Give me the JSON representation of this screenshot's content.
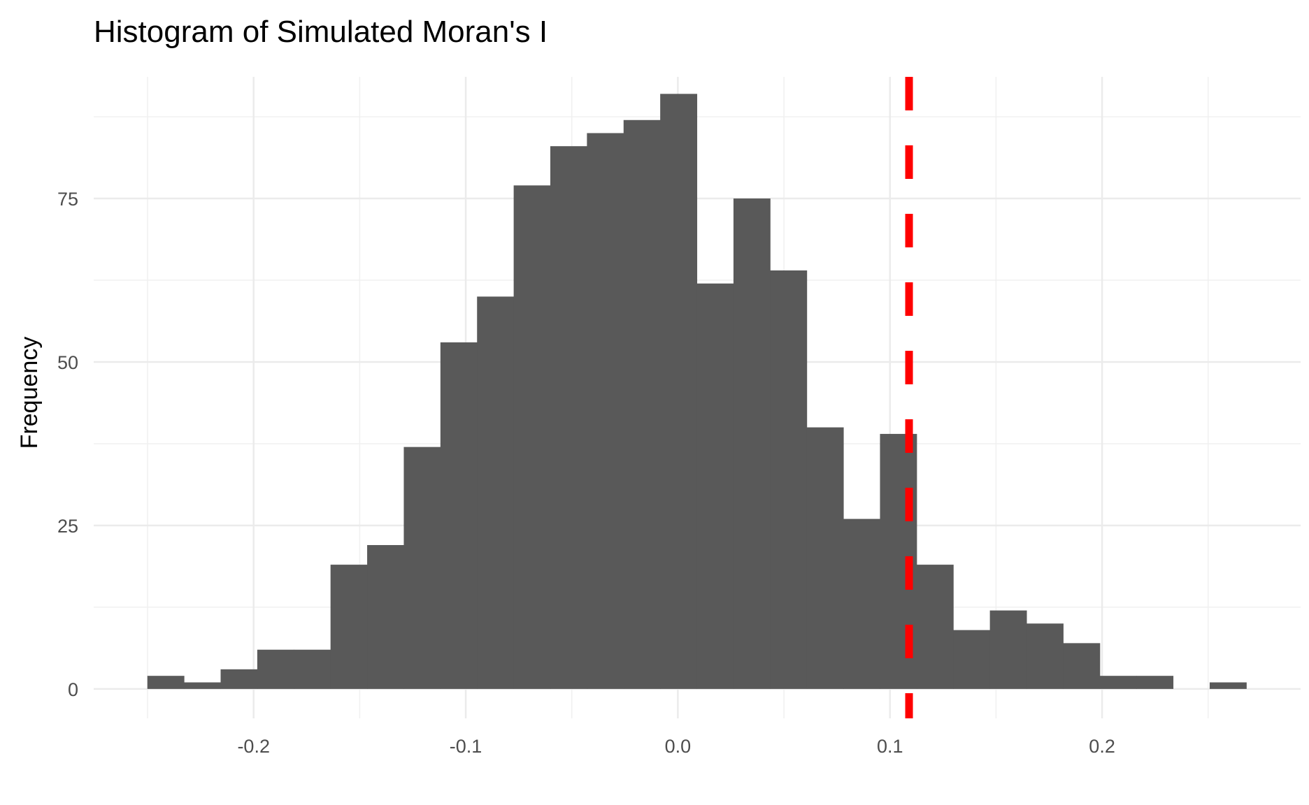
{
  "chart_data": {
    "type": "bar",
    "subtype": "histogram",
    "title": "Histogram of Simulated Moran's I",
    "xlabel": "",
    "ylabel": "Frequency",
    "bins": 30,
    "bin_start": -0.2501,
    "bin_width": 0.01727,
    "counts": [
      2,
      1,
      3,
      6,
      6,
      19,
      22,
      37,
      53,
      60,
      77,
      83,
      85,
      87,
      91,
      62,
      75,
      64,
      40,
      26,
      39,
      19,
      9,
      12,
      10,
      7,
      2,
      2,
      0,
      1
    ],
    "bar_color": "#595959",
    "reference_line": {
      "x": 0.109,
      "color": "#ff0000",
      "style": "dashed"
    },
    "xlim": [
      -0.2754,
      0.2936
    ],
    "ylim": [
      -4.5,
      93.6
    ],
    "x_ticks": [
      -0.2,
      -0.1,
      0.0,
      0.1,
      0.2
    ],
    "x_tick_labels": [
      "-0.2",
      "-0.1",
      "0.0",
      "0.1",
      "0.2"
    ],
    "y_ticks": [
      0,
      25,
      50,
      75
    ],
    "y_tick_labels": [
      "0",
      "25",
      "50",
      "75"
    ],
    "grid": true
  }
}
